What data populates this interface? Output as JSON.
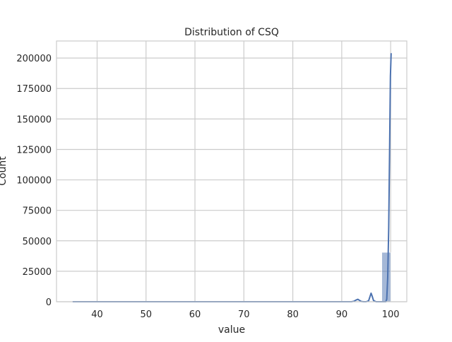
{
  "chart_data": {
    "type": "bar",
    "title": "Distribution of CSQ",
    "xlabel": "value",
    "ylabel": "Count",
    "xlim": [
      31.7,
      103.3
    ],
    "ylim": [
      0,
      214000
    ],
    "grid": true,
    "xticks": [
      40,
      50,
      60,
      70,
      80,
      90,
      100
    ],
    "yticks": [
      0,
      25000,
      50000,
      75000,
      100000,
      125000,
      150000,
      175000,
      200000
    ],
    "bins": [
      {
        "x0": 98.2,
        "x1": 100.0,
        "count": 40500
      },
      {
        "x0": 100.0,
        "x1": 101.8,
        "count": 0
      }
    ],
    "kde": {
      "x": [
        35,
        50,
        70,
        85,
        90,
        92,
        92.5,
        93,
        93.3,
        93.6,
        94,
        94.5,
        95,
        95.5,
        95.8,
        96,
        96.2,
        96.5,
        97,
        98,
        99,
        99.2,
        99.4,
        99.6,
        99.8,
        99.95,
        100.1
      ],
      "y": [
        0,
        0,
        0,
        0,
        0,
        0,
        400,
        1500,
        2000,
        1200,
        200,
        0,
        0,
        800,
        4500,
        7000,
        4800,
        1000,
        0,
        0,
        0,
        2000,
        20000,
        60000,
        130000,
        185000,
        204000
      ]
    },
    "colors": {
      "bar": "#4c72b0",
      "line": "#4c72b0",
      "grid": "#cccccc",
      "axes": "#cccccc"
    }
  }
}
